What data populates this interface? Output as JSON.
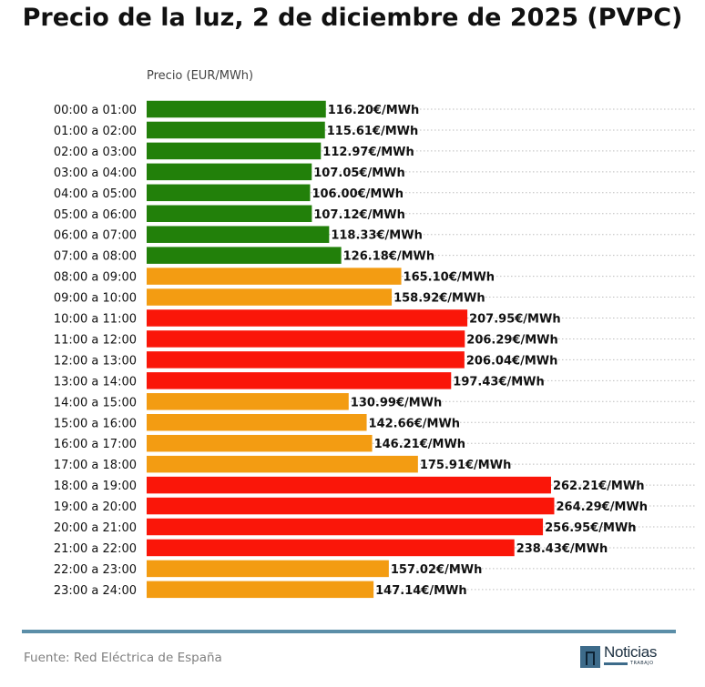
{
  "colors": {
    "low": "#22800a",
    "mid": "#f39c12",
    "high": "#fa1609",
    "grid": "#bdbdbd",
    "footer_line": "#5b8ea8"
  },
  "footer": {
    "source": "Fuente: Red Eléctrica de España",
    "logo_text": "Noticias",
    "logo_subtext": "TRABAJO"
  },
  "chart_data": {
    "type": "bar",
    "orientation": "horizontal",
    "title": "Precio de la luz, 2 de diciembre de 2025 (PVPC)",
    "xlabel": "Precio (EUR/MWh)",
    "ylabel": "",
    "xlim": [
      0,
      270
    ],
    "grid": "horizontal dotted",
    "value_label_suffix": "€/MWh",
    "categories": [
      "00:00 a 01:00",
      "01:00 a 02:00",
      "02:00 a 03:00",
      "03:00 a 04:00",
      "04:00 a 05:00",
      "05:00 a 06:00",
      "06:00 a 07:00",
      "07:00 a 08:00",
      "08:00 a 09:00",
      "09:00 a 10:00",
      "10:00 a 11:00",
      "11:00 a 12:00",
      "12:00 a 13:00",
      "13:00 a 14:00",
      "14:00 a 15:00",
      "15:00 a 16:00",
      "16:00 a 17:00",
      "17:00 a 18:00",
      "18:00 a 19:00",
      "19:00 a 20:00",
      "20:00 a 21:00",
      "21:00 a 22:00",
      "22:00 a 23:00",
      "23:00 a 24:00"
    ],
    "values": [
      116.2,
      115.61,
      112.97,
      107.05,
      106.0,
      107.12,
      118.33,
      126.18,
      165.1,
      158.92,
      207.95,
      206.29,
      206.04,
      197.43,
      130.99,
      142.66,
      146.21,
      175.91,
      262.21,
      264.29,
      256.95,
      238.43,
      157.02,
      147.14
    ],
    "levels": [
      "low",
      "low",
      "low",
      "low",
      "low",
      "low",
      "low",
      "low",
      "mid",
      "mid",
      "high",
      "high",
      "high",
      "high",
      "mid",
      "mid",
      "mid",
      "mid",
      "high",
      "high",
      "high",
      "high",
      "mid",
      "mid"
    ]
  }
}
